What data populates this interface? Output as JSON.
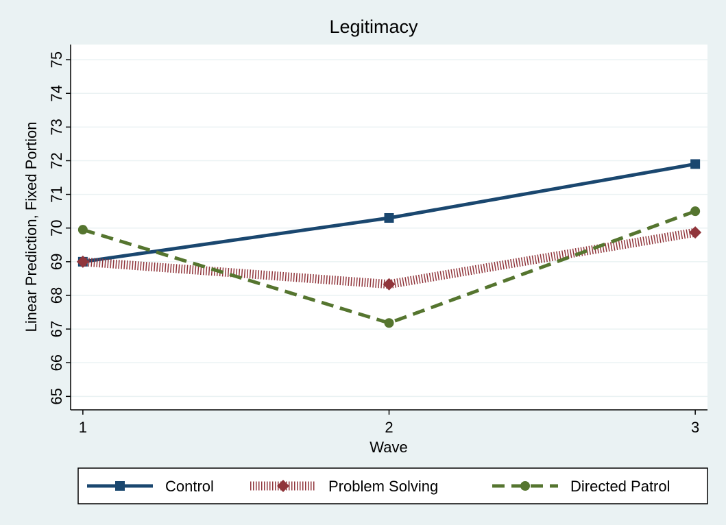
{
  "chart_data": {
    "type": "line",
    "title": "Legitimacy",
    "x_label": "Wave",
    "y_label": "Linear Prediction, Fixed Portion",
    "x": [
      1,
      2,
      3
    ],
    "series": [
      {
        "name": "Control",
        "color": "#1a476f",
        "marker": "square",
        "dash": "solid",
        "values": [
          69.0,
          70.3,
          71.9
        ]
      },
      {
        "name": "Problem Solving",
        "color": "#90353b",
        "marker": "diamond",
        "dash": "hatched",
        "values": [
          69.0,
          68.33,
          69.87
        ]
      },
      {
        "name": "Directed Patrol",
        "color": "#55752f",
        "marker": "circle",
        "dash": "dashed",
        "values": [
          69.95,
          67.18,
          70.5
        ]
      }
    ],
    "xlim": [
      0.96,
      3.04
    ],
    "xticks": [
      1,
      2,
      3
    ],
    "ylim": [
      64.6,
      75.45
    ],
    "yticks": [
      65,
      66,
      67,
      68,
      69,
      70,
      71,
      72,
      73,
      74,
      75
    ],
    "grid": true,
    "legend": "bottom"
  }
}
